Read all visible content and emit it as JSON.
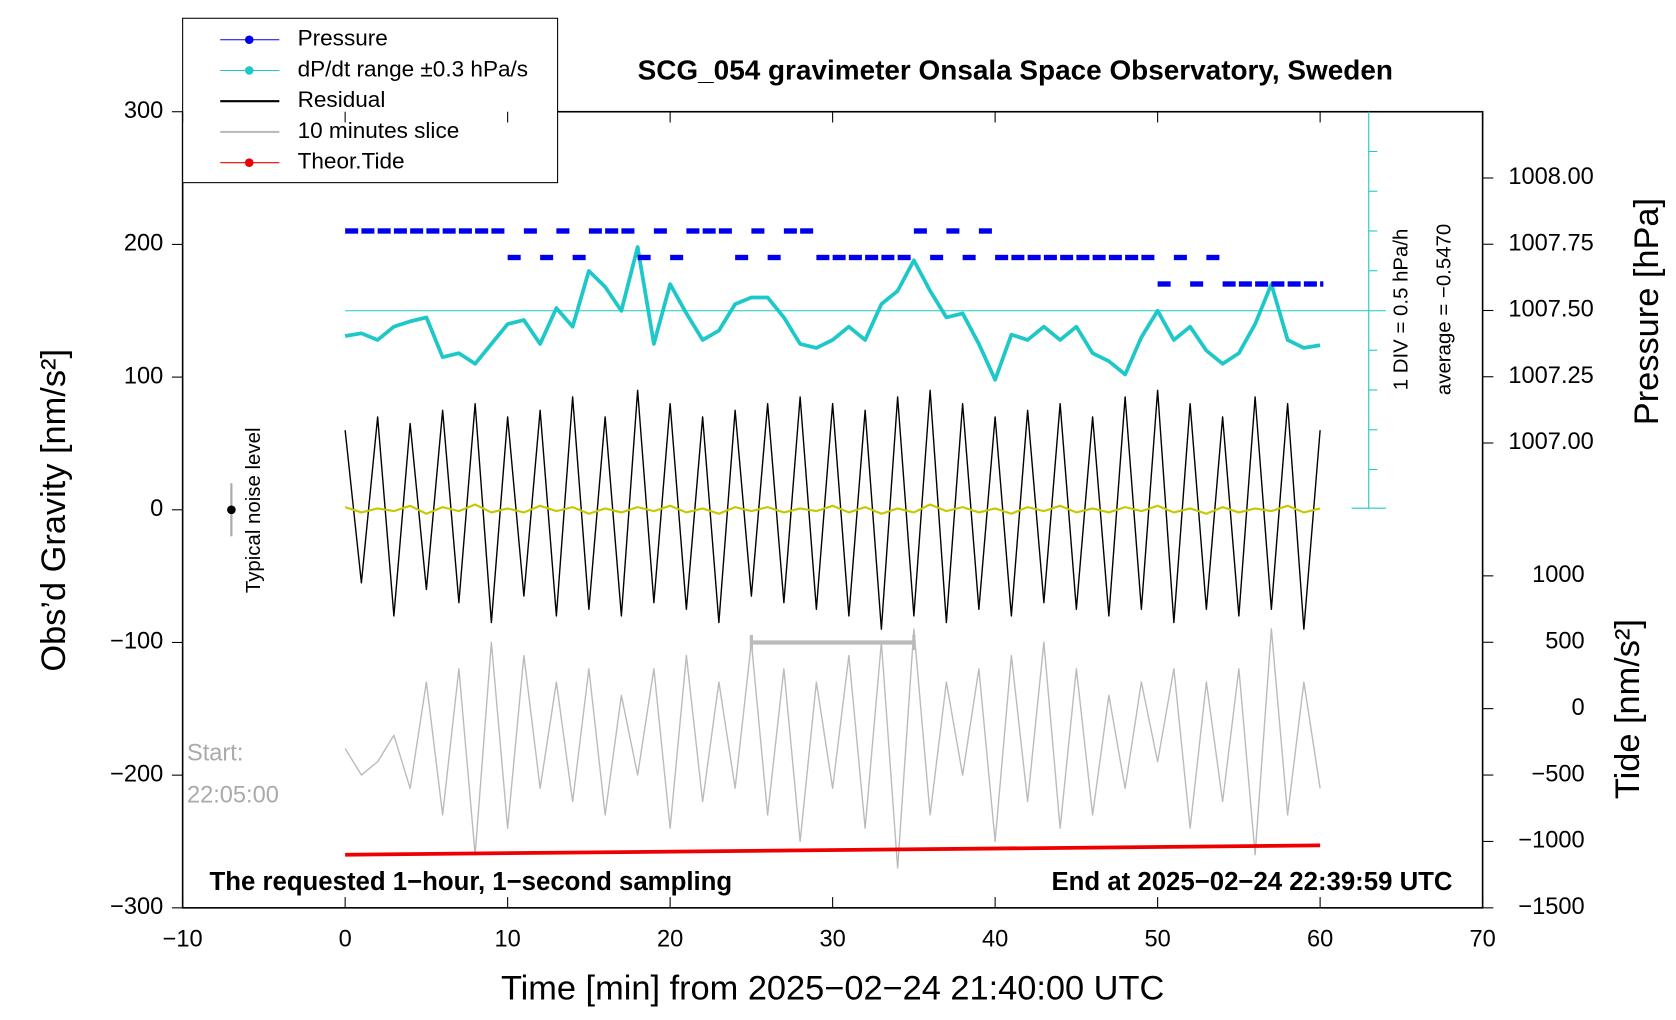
{
  "chart_data": {
    "type": "line",
    "title": "SCG_054 gravimeter Onsala Space Observatory, Sweden",
    "xlabel": "Time [min] from 2025−02−24 21:40:00 UTC",
    "ylabel": "Obs’d Gravity [nm/s²]",
    "y2label": "Pressure [hPa]",
    "y3label": "Tide [nm/s²]",
    "xlim": [
      -10,
      70
    ],
    "xticks": [
      {
        "value": -10,
        "label": "−10"
      },
      0,
      10,
      20,
      30,
      40,
      50,
      60,
      70
    ],
    "ylim": [
      -300,
      300
    ],
    "yticks": [
      {
        "value": -300,
        "label": "−300"
      },
      {
        "value": -200,
        "label": "−200"
      },
      {
        "value": -100,
        "label": "−100"
      },
      0,
      100,
      200,
      300
    ],
    "y2lim": [
      1006.75,
      1008.25
    ],
    "y2ticks": [
      {
        "value": 1007.0,
        "label": "1007.00"
      },
      {
        "value": 1007.25,
        "label": "1007.25"
      },
      {
        "value": 1007.5,
        "label": "1007.50"
      },
      {
        "value": 1007.75,
        "label": "1007.75"
      },
      {
        "value": 1008.0,
        "label": "1008.00"
      }
    ],
    "y3lim": [
      -1500,
      1000
    ],
    "y3ticks": [
      {
        "value": -1500,
        "label": "−1500"
      },
      {
        "value": -1000,
        "label": "−1000"
      },
      {
        "value": -500,
        "label": "−500"
      },
      0,
      500,
      1000
    ],
    "x": [
      0,
      1,
      2,
      3,
      4,
      5,
      6,
      7,
      8,
      9,
      10,
      11,
      12,
      13,
      14,
      15,
      16,
      17,
      18,
      19,
      20,
      21,
      22,
      23,
      24,
      25,
      26,
      27,
      28,
      29,
      30,
      31,
      32,
      33,
      34,
      35,
      36,
      37,
      38,
      39,
      40,
      41,
      42,
      43,
      44,
      45,
      46,
      47,
      48,
      49,
      50,
      51,
      52,
      53,
      54,
      55,
      56,
      57,
      58,
      59,
      60
    ],
    "series": [
      {
        "name": "Pressure",
        "color": "#0000ee",
        "axis": "y2",
        "values": [
          1007.8,
          1007.8,
          1007.8,
          1007.8,
          1007.8,
          1007.8,
          1007.8,
          1007.8,
          1007.8,
          1007.8,
          1007.7,
          1007.8,
          1007.7,
          1007.8,
          1007.7,
          1007.8,
          1007.8,
          1007.8,
          1007.7,
          1007.8,
          1007.7,
          1007.8,
          1007.8,
          1007.8,
          1007.7,
          1007.8,
          1007.7,
          1007.8,
          1007.8,
          1007.7,
          1007.7,
          1007.7,
          1007.7,
          1007.7,
          1007.7,
          1007.8,
          1007.7,
          1007.8,
          1007.7,
          1007.8,
          1007.7,
          1007.7,
          1007.7,
          1007.7,
          1007.7,
          1007.7,
          1007.7,
          1007.7,
          1007.7,
          1007.7,
          1007.6,
          1007.7,
          1007.6,
          1007.7,
          1007.6,
          1007.6,
          1007.6,
          1007.6,
          1007.6,
          1007.6,
          1007.6
        ]
      },
      {
        "name": "dP/dt range ±0.3 hPa/s",
        "color": "#1ec8c8",
        "values": [
          131,
          133,
          128,
          138,
          142,
          145,
          115,
          118,
          110,
          125,
          140,
          143,
          125,
          152,
          138,
          180,
          168,
          150,
          198,
          125,
          170,
          148,
          128,
          135,
          155,
          160,
          160,
          145,
          125,
          122,
          128,
          138,
          128,
          155,
          165,
          188,
          165,
          145,
          148,
          125,
          98,
          132,
          128,
          138,
          128,
          138,
          118,
          112,
          102,
          130,
          150,
          128,
          138,
          120,
          110,
          118,
          140,
          170,
          128,
          122,
          124
        ]
      },
      {
        "name": "Residual",
        "color": "#000000",
        "values": [
          60,
          -55,
          70,
          -80,
          65,
          -60,
          75,
          -70,
          80,
          -85,
          70,
          -65,
          75,
          -80,
          85,
          -75,
          70,
          -80,
          90,
          -70,
          80,
          -75,
          70,
          -85,
          75,
          -65,
          80,
          -70,
          85,
          -75,
          80,
          -80,
          75,
          -90,
          85,
          -80,
          90,
          -85,
          80,
          -75,
          70,
          -80,
          75,
          -70,
          80,
          -75,
          70,
          -80,
          85,
          -75,
          90,
          -85,
          80,
          -75,
          70,
          -80,
          85,
          -75,
          80,
          -90,
          60
        ]
      },
      {
        "name": "10 minutes slice",
        "color": "#bbbbbb",
        "axis": "y3",
        "values": [
          -300,
          -500,
          -400,
          -200,
          -600,
          200,
          -800,
          300,
          -1100,
          500,
          -900,
          400,
          -600,
          200,
          -700,
          300,
          -800,
          100,
          -500,
          300,
          -900,
          400,
          -700,
          200,
          -600,
          500,
          -800,
          300,
          -1000,
          200,
          -600,
          400,
          -900,
          500,
          -1200,
          600,
          -800,
          200,
          -500,
          300,
          -1000,
          400,
          -700,
          500,
          -900,
          300,
          -800,
          100,
          -600,
          200,
          -400,
          300,
          -900,
          200,
          -700,
          300,
          -1100,
          600,
          -800,
          200,
          -600
        ]
      },
      {
        "name": "Theor.Tide",
        "color": "#ee0000",
        "axis": "y3",
        "x": [
          0,
          60
        ],
        "values": [
          -1100,
          -1030
        ]
      },
      {
        "color": "#c8c800",
        "values": [
          2,
          -2,
          1,
          -1,
          3,
          -3,
          2,
          -1,
          4,
          -2,
          1,
          -2,
          3,
          -1,
          2,
          -3,
          1,
          -2,
          2,
          -1,
          3,
          -2,
          1,
          -3,
          2,
          -1,
          2,
          -2,
          1,
          -1,
          3,
          -2,
          2,
          -3,
          1,
          -2,
          4,
          -1,
          2,
          -2,
          1,
          -3,
          2,
          -1,
          3,
          -2,
          1,
          -2,
          2,
          -1,
          3,
          -2,
          1,
          -3,
          2,
          -2,
          1,
          -1,
          3,
          -2,
          1
        ]
      }
    ],
    "dpdt_reference": 150,
    "slice": [
      25,
      35
    ],
    "slice_level": -100,
    "noise_level": {
      "x": -7,
      "value": 0,
      "error": 20
    },
    "div_label": "1 DIV = 0.5 hPa/h",
    "average_label": "average = −0.5470",
    "noise_label": "Typical noise level",
    "start_label": "Start:",
    "start_time": "22:05:00",
    "note_left": "The requested 1−hour, 1−second sampling",
    "note_right": "End at 2025−02−24 22:39:59 UTC"
  }
}
